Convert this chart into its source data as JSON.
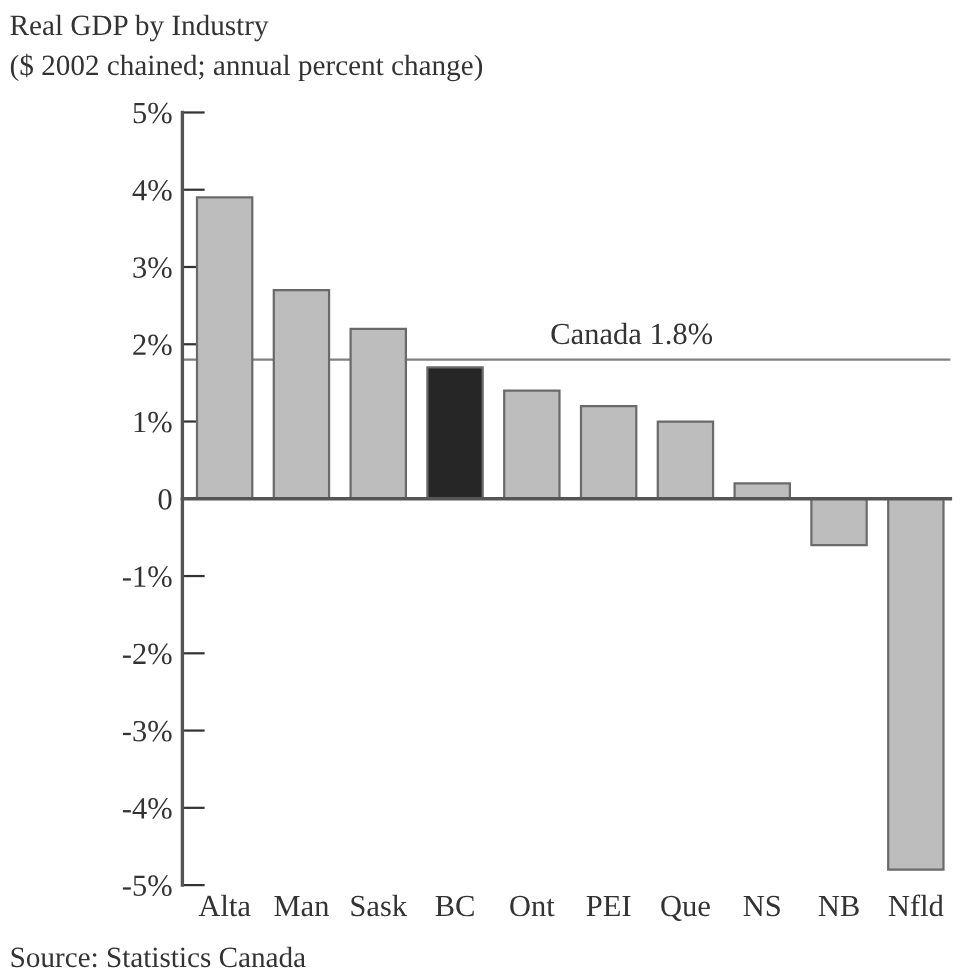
{
  "chart_data": {
    "type": "bar",
    "title": "Real GDP by Industry",
    "subtitle": "($ 2002 chained; annual percent change)",
    "categories": [
      "Alta",
      "Man",
      "Sask",
      "BC",
      "Ont",
      "PEI",
      "Que",
      "NS",
      "NB",
      "Nfld"
    ],
    "values": [
      3.9,
      2.7,
      2.2,
      1.7,
      1.4,
      1.2,
      1.0,
      0.2,
      -0.6,
      -4.8
    ],
    "colors": [
      "#bdbdbd",
      "#bdbdbd",
      "#bdbdbd",
      "#262626",
      "#bdbdbd",
      "#bdbdbd",
      "#bdbdbd",
      "#bdbdbd",
      "#bdbdbd",
      "#bdbdbd"
    ],
    "ylim": [
      -5,
      5
    ],
    "yticks": [
      {
        "value": -5,
        "label": "-5%"
      },
      {
        "value": -4,
        "label": "-4%"
      },
      {
        "value": -3,
        "label": "-3%"
      },
      {
        "value": -2,
        "label": "-2%"
      },
      {
        "value": -1,
        "label": "-1%"
      },
      0,
      {
        "value": 1,
        "label": "1%"
      },
      {
        "value": 2,
        "label": "2%"
      },
      {
        "value": 3,
        "label": "3%"
      },
      {
        "value": 4,
        "label": "4%"
      },
      {
        "value": 5,
        "label": "5%"
      }
    ],
    "ref_lines": [
      {
        "axis": "y",
        "value": 1.8,
        "label": "Canada 1.8%",
        "color": "#808080"
      }
    ],
    "annotations": [
      "Source: Statistics Canada"
    ],
    "legend": false
  }
}
